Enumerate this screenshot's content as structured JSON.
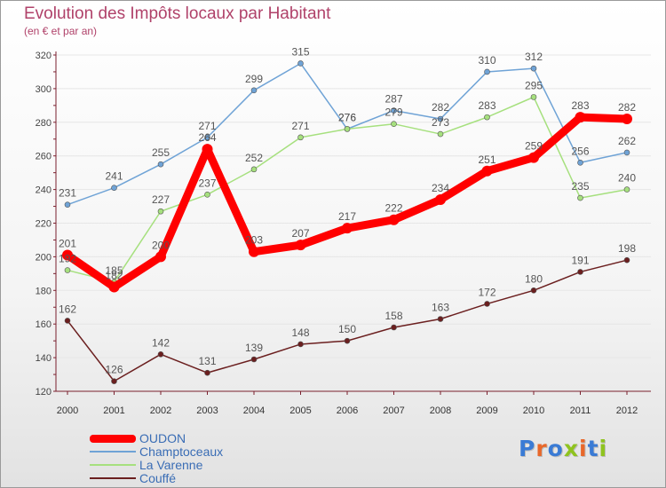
{
  "title": "Evolution des Impôts locaux par Habitant",
  "subtitle": "(en € et par an)",
  "logo_text": "Proxiti",
  "colors": {
    "title": "#b0426a",
    "axis": "#7a1f2e",
    "grid": "#e6e6e6",
    "legend_text": "#3a6db5"
  },
  "chart_data": {
    "type": "line",
    "title": "Evolution des Impôts locaux par Habitant",
    "subtitle": "(en € et par an)",
    "xlabel": "",
    "ylabel": "",
    "ylim": [
      120,
      320
    ],
    "yticks": [
      120,
      140,
      160,
      180,
      200,
      220,
      240,
      260,
      280,
      300,
      320
    ],
    "grid": true,
    "legend_position": "bottom-left",
    "categories": [
      "2000",
      "2001",
      "2002",
      "2003",
      "2004",
      "2005",
      "2006",
      "2007",
      "2008",
      "2009",
      "2010",
      "2011",
      "2012"
    ],
    "series": [
      {
        "name": "OUDON",
        "color": "#ff0000",
        "values": [
          201,
          182,
          200,
          264,
          203,
          207,
          217,
          222,
          234,
          251,
          259,
          283,
          282
        ]
      },
      {
        "name": "Champtoceaux",
        "color": "#6fa3d6",
        "values": [
          231,
          241,
          255,
          271,
          299,
          315,
          276,
          287,
          282,
          310,
          312,
          256,
          262
        ]
      },
      {
        "name": "La Varenne",
        "color": "#a6e07e",
        "values": [
          192,
          185,
          227,
          237,
          252,
          271,
          276,
          279,
          273,
          283,
          295,
          235,
          240
        ]
      },
      {
        "name": "Couffé",
        "color": "#6b1f1f",
        "values": [
          162,
          126,
          142,
          131,
          139,
          148,
          150,
          158,
          163,
          172,
          180,
          191,
          198
        ]
      }
    ]
  }
}
